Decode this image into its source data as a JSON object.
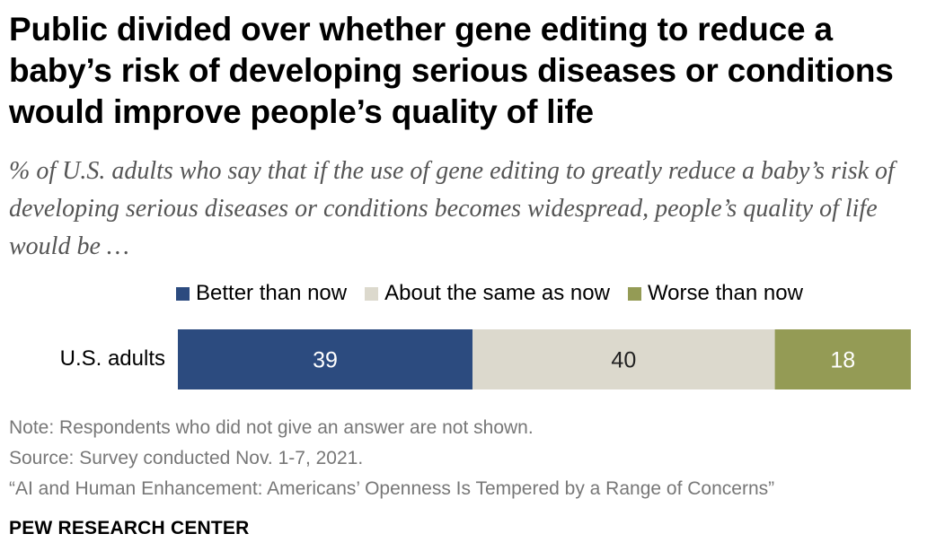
{
  "title": "Public divided over whether gene editing to reduce a baby’s risk of developing serious diseases or conditions would improve people’s quality of life",
  "subtitle": "% of U.S. adults who say that if the use of gene editing to greatly reduce a baby’s risk of developing serious diseases or conditions becomes widespread, people’s quality of life would be …",
  "footnotes": {
    "note": "Note: Respondents who did not give an answer are not shown.",
    "source": "Source: Survey conducted Nov. 1-7, 2021.",
    "report": "“AI and Human Enhancement: Americans’ Openness Is Tempered by a Range of Concerns”"
  },
  "organization": "PEW RESEARCH CENTER",
  "chart_data": {
    "type": "bar",
    "orientation": "horizontal",
    "stacked": true,
    "categories": [
      "U.S. adults"
    ],
    "series": [
      {
        "name": "Better than now",
        "values": [
          39
        ],
        "color": "#2c4b7f",
        "label_color": "#ffffff"
      },
      {
        "name": "About the same as now",
        "values": [
          40
        ],
        "color": "#dcd9cd",
        "label_color": "#222222"
      },
      {
        "name": "Worse than now",
        "values": [
          18
        ],
        "color": "#949b55",
        "label_color": "#ffffff"
      }
    ],
    "xlim": [
      0,
      97
    ],
    "legend_position": "top",
    "grid": false
  }
}
